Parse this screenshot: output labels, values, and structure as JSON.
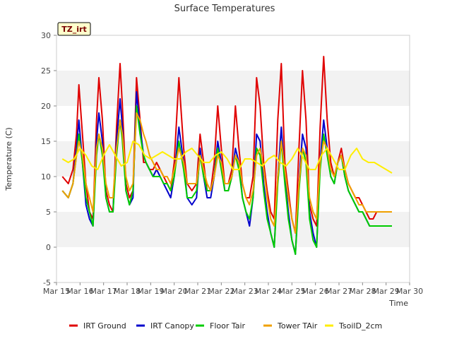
{
  "chart_data": {
    "type": "line",
    "title": "Surface Temperatures",
    "xlabel": "Time",
    "ylabel": "Temperature (C)",
    "annotation": "TZ_irt",
    "xlim": [
      15,
      30
    ],
    "ylim": [
      -5,
      30
    ],
    "x_ticks": [
      15,
      16,
      17,
      18,
      19,
      20,
      21,
      22,
      23,
      24,
      25,
      26,
      27,
      28,
      29,
      30
    ],
    "x_tick_labels": [
      "Mar 15",
      "Mar 16",
      "Mar 17",
      "Mar 18",
      "Mar 19",
      "Mar 20",
      "Mar 21",
      "Mar 22",
      "Mar 23",
      "Mar 24",
      "Mar 25",
      "Mar 26",
      "Mar 27",
      "Mar 28",
      "Mar 29",
      "Mar 30"
    ],
    "y_ticks": [
      -5,
      0,
      5,
      10,
      15,
      20,
      25,
      30
    ],
    "y_tick_labels": [
      "-5",
      "0",
      "5",
      "10",
      "15",
      "20",
      "25",
      "30"
    ],
    "grid": "horizontal bands",
    "legend_position": "bottom",
    "series": [
      {
        "name": "IRT Ground",
        "color": "#e00000",
        "x": [
          15.25,
          15.5,
          15.7,
          15.85,
          15.95,
          16.1,
          16.25,
          16.4,
          16.55,
          16.7,
          16.8,
          16.95,
          17.1,
          17.25,
          17.4,
          17.55,
          17.7,
          17.8,
          17.95,
          18.1,
          18.25,
          18.4,
          18.55,
          18.7,
          18.8,
          18.95,
          19.1,
          19.25,
          19.4,
          19.55,
          19.7,
          19.85,
          20.0,
          20.2,
          20.4,
          20.55,
          20.75,
          20.95,
          21.1,
          21.25,
          21.4,
          21.55,
          21.7,
          21.85,
          22.0,
          22.15,
          22.3,
          22.45,
          22.6,
          22.75,
          22.9,
          23.05,
          23.2,
          23.35,
          23.5,
          23.65,
          23.8,
          23.95,
          24.1,
          24.25,
          24.4,
          24.55,
          24.7,
          24.85,
          25.0,
          25.15,
          25.3,
          25.45,
          25.6,
          25.75,
          25.9,
          26.05,
          26.2,
          26.35,
          26.5,
          26.65,
          26.8,
          26.95,
          27.1,
          27.25,
          27.4,
          27.55,
          27.7,
          27.85,
          28.0,
          28.15,
          28.3,
          28.45,
          28.6,
          28.75,
          28.9,
          29.05,
          29.25
        ],
        "y": [
          10,
          9,
          11,
          16,
          23,
          16,
          9,
          5,
          4,
          18,
          24,
          18,
          8,
          6,
          5,
          17,
          26,
          20,
          9,
          7,
          8,
          24,
          18,
          12,
          12,
          11,
          11,
          12,
          11,
          10,
          9,
          8,
          12,
          24,
          14,
          9,
          8,
          9,
          16,
          12,
          8,
          8,
          12,
          20,
          14,
          9,
          9,
          11,
          20,
          14,
          9,
          7,
          7,
          10,
          24,
          20,
          12,
          8,
          5,
          4,
          18,
          26,
          12,
          8,
          4,
          2,
          14,
          25,
          18,
          6,
          4,
          3,
          17,
          27,
          18,
          12,
          10,
          12,
          14,
          11,
          9,
          8,
          7,
          7,
          6,
          5,
          4,
          4,
          5,
          5,
          5,
          5,
          5
        ]
      },
      {
        "name": "IRT Canopy",
        "color": "#0000cc",
        "x": [
          15.25,
          15.5,
          15.7,
          15.85,
          15.95,
          16.1,
          16.25,
          16.4,
          16.55,
          16.7,
          16.8,
          16.95,
          17.1,
          17.25,
          17.4,
          17.55,
          17.7,
          17.8,
          17.95,
          18.1,
          18.25,
          18.4,
          18.55,
          18.7,
          18.8,
          18.95,
          19.1,
          19.25,
          19.4,
          19.55,
          19.7,
          19.85,
          20.0,
          20.2,
          20.4,
          20.55,
          20.75,
          20.95,
          21.1,
          21.25,
          21.4,
          21.55,
          21.7,
          21.85,
          22.0,
          22.15,
          22.3,
          22.45,
          22.6,
          22.75,
          22.9,
          23.05,
          23.2,
          23.35,
          23.5,
          23.65,
          23.8,
          23.95,
          24.1,
          24.25,
          24.4,
          24.55,
          24.7,
          24.85,
          25.0,
          25.15,
          25.3,
          25.45,
          25.6,
          25.75,
          25.9,
          26.05,
          26.2,
          26.35,
          26.5,
          26.65,
          26.8,
          26.95,
          27.1,
          27.25,
          27.4,
          27.55,
          27.7,
          27.85,
          28.0,
          28.15,
          28.3,
          28.45,
          28.6,
          28.75,
          28.9,
          29.05,
          29.25
        ],
        "y": [
          8,
          7,
          9,
          14,
          18,
          12,
          6,
          4,
          3,
          15,
          19,
          15,
          7,
          5,
          5,
          15,
          21,
          17,
          8,
          6,
          7,
          22,
          17,
          13,
          12,
          11,
          10,
          11,
          10,
          9,
          8,
          7,
          10,
          17,
          12,
          7,
          6,
          7,
          14,
          10,
          7,
          7,
          10,
          15,
          12,
          8,
          8,
          10,
          14,
          12,
          7,
          5,
          3,
          7,
          16,
          15,
          9,
          5,
          2,
          0,
          10,
          17,
          10,
          5,
          1,
          -1,
          9,
          16,
          14,
          5,
          2,
          0,
          12,
          18,
          14,
          10,
          9,
          12,
          13,
          10,
          8,
          7,
          6,
          5,
          5,
          4,
          3,
          3,
          3,
          3,
          3,
          3,
          3
        ]
      },
      {
        "name": "Floor Tair",
        "color": "#00cc00",
        "x": [
          15.25,
          15.5,
          15.7,
          15.85,
          15.95,
          16.1,
          16.25,
          16.4,
          16.55,
          16.7,
          16.8,
          16.95,
          17.1,
          17.25,
          17.4,
          17.55,
          17.7,
          17.8,
          17.95,
          18.1,
          18.25,
          18.4,
          18.55,
          18.7,
          18.8,
          18.95,
          19.1,
          19.25,
          19.4,
          19.55,
          19.7,
          19.85,
          20.0,
          20.2,
          20.4,
          20.55,
          20.75,
          20.95,
          21.1,
          21.25,
          21.4,
          21.55,
          21.7,
          21.85,
          22.0,
          22.15,
          22.3,
          22.45,
          22.6,
          22.75,
          22.9,
          23.05,
          23.2,
          23.35,
          23.5,
          23.65,
          23.8,
          23.95,
          24.1,
          24.25,
          24.4,
          24.55,
          24.7,
          24.85,
          25.0,
          25.15,
          25.3,
          25.45,
          25.6,
          25.75,
          25.9,
          26.05,
          26.2,
          26.35,
          26.5,
          26.65,
          26.8,
          26.95,
          27.1,
          27.25,
          27.4,
          27.55,
          27.7,
          27.85,
          28.0,
          28.15,
          28.3,
          28.45,
          28.6,
          28.75,
          28.9,
          29.05,
          29.25
        ],
        "y": [
          8,
          7,
          9,
          13,
          16,
          12,
          7,
          5,
          3,
          13,
          16,
          13,
          7,
          5,
          5,
          13,
          18,
          15,
          8,
          6,
          8,
          20,
          16,
          13,
          12,
          11,
          10,
          10,
          10,
          9,
          9,
          8,
          10,
          15,
          11,
          7,
          7,
          8,
          13,
          10,
          8,
          8,
          10,
          14,
          11,
          8,
          8,
          10,
          13,
          11,
          7,
          5,
          4,
          7,
          14,
          13,
          8,
          4,
          2,
          0,
          9,
          15,
          9,
          4,
          1,
          -1,
          8,
          14,
          12,
          4,
          1,
          0,
          11,
          16,
          13,
          10,
          9,
          12,
          13,
          10,
          8,
          7,
          6,
          5,
          5,
          4,
          3,
          3,
          3,
          3,
          3,
          3,
          3
        ]
      },
      {
        "name": "Tower TAir",
        "color": "#f0a000",
        "x": [
          15.25,
          15.5,
          15.7,
          15.85,
          15.95,
          16.1,
          16.25,
          16.4,
          16.55,
          16.7,
          16.8,
          16.95,
          17.1,
          17.25,
          17.4,
          17.55,
          17.7,
          17.8,
          17.95,
          18.1,
          18.25,
          18.4,
          18.55,
          18.7,
          18.8,
          18.95,
          19.1,
          19.25,
          19.4,
          19.55,
          19.7,
          19.85,
          20.0,
          20.2,
          20.4,
          20.55,
          20.75,
          20.95,
          21.1,
          21.25,
          21.4,
          21.55,
          21.7,
          21.85,
          22.0,
          22.15,
          22.3,
          22.45,
          22.6,
          22.75,
          22.9,
          23.05,
          23.2,
          23.35,
          23.5,
          23.65,
          23.8,
          23.95,
          24.1,
          24.25,
          24.4,
          24.55,
          24.7,
          24.85,
          25.0,
          25.15,
          25.3,
          25.45,
          25.6,
          25.75,
          25.9,
          26.05,
          26.2,
          26.35,
          26.5,
          26.65,
          26.8,
          26.95,
          27.1,
          27.25,
          27.4,
          27.55,
          27.7,
          27.85,
          28.0,
          28.15,
          28.3,
          28.45,
          28.6,
          28.75,
          28.9,
          29.05,
          29.25
        ],
        "y": [
          8,
          7,
          9,
          13,
          15,
          13,
          9,
          7,
          5,
          14,
          16,
          14,
          9,
          7,
          7,
          14,
          18,
          16,
          10,
          8,
          9,
          19,
          18,
          16,
          15,
          13,
          12,
          11,
          11,
          10,
          10,
          9,
          11,
          14,
          12,
          9,
          9,
          9,
          13,
          11,
          9,
          8,
          10,
          13,
          12,
          9,
          9,
          10,
          13,
          12,
          9,
          7,
          6,
          8,
          13,
          14,
          11,
          7,
          4,
          3,
          10,
          15,
          11,
          7,
          4,
          2,
          9,
          14,
          13,
          7,
          5,
          4,
          12,
          15,
          14,
          11,
          10,
          12,
          13,
          11,
          9,
          8,
          7,
          6,
          6,
          5,
          5,
          5,
          5,
          5,
          5,
          5,
          5
        ]
      },
      {
        "name": "TsoilD_2cm",
        "color": "#ffee00",
        "x": [
          15.25,
          15.5,
          15.75,
          16.0,
          16.25,
          16.5,
          16.75,
          17.0,
          17.25,
          17.5,
          17.75,
          18.0,
          18.25,
          18.5,
          18.75,
          19.0,
          19.25,
          19.5,
          19.75,
          20.0,
          20.25,
          20.5,
          20.75,
          21.0,
          21.25,
          21.5,
          21.75,
          22.0,
          22.25,
          22.5,
          22.75,
          23.0,
          23.25,
          23.5,
          23.75,
          24.0,
          24.25,
          24.5,
          24.75,
          25.0,
          25.25,
          25.5,
          25.75,
          26.0,
          26.25,
          26.5,
          26.75,
          27.0,
          27.25,
          27.5,
          27.75,
          28.0,
          28.25,
          28.5,
          28.75,
          29.0,
          29.25
        ],
        "y": [
          12.5,
          12,
          12.5,
          14,
          13,
          11.5,
          11,
          13,
          14.5,
          13,
          11.5,
          12,
          15,
          14.5,
          13,
          12.5,
          13,
          13.5,
          13,
          12.5,
          12.5,
          13.5,
          14,
          13,
          12,
          12,
          13,
          13.5,
          12.5,
          11,
          11,
          12.5,
          12.5,
          12,
          11.5,
          12.5,
          13,
          12,
          11.5,
          12.5,
          14,
          12.5,
          11,
          11,
          13,
          14,
          12.5,
          11,
          11,
          13,
          14,
          12.5,
          12,
          12,
          11.5,
          11,
          10.5
        ]
      }
    ]
  }
}
